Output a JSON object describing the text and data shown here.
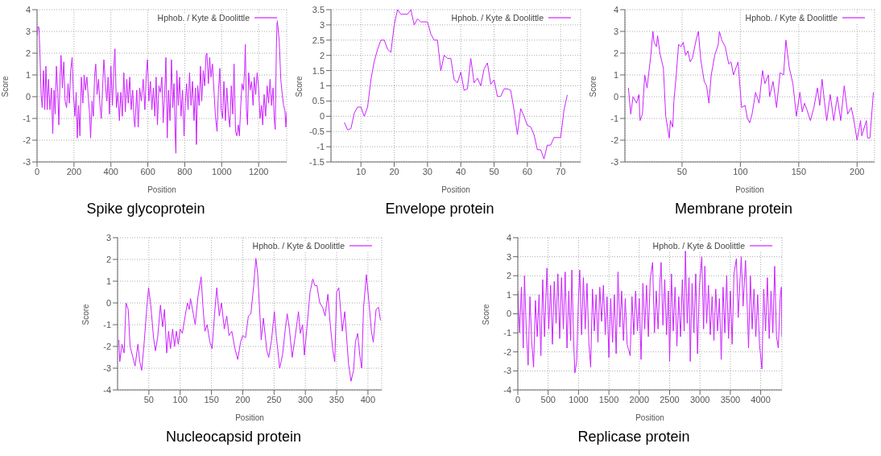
{
  "chart_data": [
    {
      "type": "line",
      "title": "Spike glycoprotein",
      "xlabel": "Position",
      "ylabel": "Score",
      "xlim": [
        0,
        1352
      ],
      "xticks": [
        0,
        200,
        400,
        600,
        800,
        1000,
        1200
      ],
      "ylim": [
        -3,
        4
      ],
      "yticks": [
        -3,
        -2,
        -1,
        0,
        1,
        2,
        3,
        4
      ],
      "grid": true,
      "legend": "top right",
      "marker": "none",
      "x": [
        0,
        5,
        10,
        15,
        22,
        28,
        35,
        42,
        48,
        55,
        62,
        70,
        78,
        85,
        92,
        98,
        105,
        112,
        118,
        125,
        130,
        137,
        145,
        152,
        160,
        168,
        175,
        182,
        190,
        197,
        205,
        212,
        218,
        225,
        232,
        240,
        248,
        255,
        262,
        270,
        278,
        285,
        290,
        298,
        305,
        312,
        318,
        325,
        333,
        340,
        348,
        355,
        362,
        370,
        378,
        385,
        392,
        400,
        408,
        418,
        422,
        430,
        438,
        446,
        454,
        462,
        470,
        478,
        486,
        494,
        502,
        510,
        518,
        525,
        530,
        540,
        548,
        556,
        565,
        575,
        584,
        592,
        598,
        606,
        614,
        622,
        630,
        638,
        645,
        652,
        660,
        668,
        676,
        683,
        692,
        698,
        705,
        712,
        720,
        728,
        735,
        742,
        748,
        752,
        757,
        765,
        772,
        780,
        788,
        796,
        803,
        810,
        818,
        826,
        834,
        842,
        850,
        858,
        863,
        870,
        878,
        885,
        892,
        900,
        908,
        915,
        920,
        928,
        935,
        942,
        950,
        958,
        966,
        975,
        982,
        990,
        997,
        1005,
        1012,
        1020,
        1028,
        1036,
        1044,
        1052,
        1060,
        1067,
        1075,
        1082,
        1090,
        1096,
        1102,
        1110,
        1118,
        1124,
        1128,
        1134,
        1140,
        1146,
        1154,
        1162,
        1170,
        1176,
        1184,
        1192,
        1200,
        1208,
        1216,
        1222,
        1230,
        1238,
        1246,
        1254,
        1262,
        1270,
        1278,
        1285,
        1290,
        1296,
        1300,
        1305,
        1312,
        1320,
        1328,
        1335,
        1342,
        1348,
        1352
      ],
      "series": [
        {
          "name": "Hphob. / Kyte & Doolittle",
          "color": "#cc22ff",
          "values": [
            2.8,
            3.2,
            3.2,
            2.2,
            0.1,
            -0.5,
            1.2,
            -0.6,
            1.4,
            -0.6,
            0.8,
            -0.6,
            0.4,
            -1.7,
            0.3,
            -0.8,
            1.4,
            0.2,
            -1.3,
            0.9,
            1.9,
            0.4,
            1.6,
            -0.2,
            -0.5,
            0.6,
            -0.3,
            1.2,
            1.8,
            0.1,
            -0.9,
            0.2,
            -1.9,
            -0.4,
            -1.8,
            0.9,
            -0.3,
            1.0,
            0.3,
            0.9,
            -0.1,
            -0.8,
            -1.9,
            -0.2,
            -0.9,
            1.0,
            1.5,
            0.1,
            0.8,
            -0.3,
            -1.0,
            0.4,
            1.7,
            0.6,
            -0.2,
            0.9,
            -0.8,
            1.4,
            -0.4,
            1.7,
            2.2,
            -0.5,
            0.2,
            -1.1,
            0.2,
            -0.9,
            1.1,
            -0.7,
            0.8,
            -0.3,
            0.9,
            -0.6,
            0.3,
            -1.0,
            -1.4,
            0.3,
            -1.4,
            0.4,
            -0.2,
            0.8,
            -0.6,
            1.1,
            1.7,
            -0.2,
            0.7,
            -0.6,
            0.4,
            -0.9,
            0.9,
            -1.3,
            0.5,
            0.2,
            0.9,
            -1.2,
            0.3,
            1.8,
            -1.9,
            0.3,
            -1.1,
            1.7,
            -0.5,
            0.6,
            -1.7,
            -2.6,
            1.2,
            -0.4,
            0.9,
            -0.9,
            0.3,
            -1.8,
            -0.3,
            0.6,
            -0.6,
            1.1,
            -0.4,
            0.7,
            -1.1,
            0.4,
            -2.2,
            0.5,
            -0.4,
            1.4,
            -0.2,
            1.2,
            0.5,
            1.9,
            2.0,
            0.6,
            1.8,
            0.9,
            1.5,
            0.3,
            -0.9,
            -1.6,
            0.2,
            1.3,
            -0.6,
            -1.0,
            0.7,
            -1.1,
            0.4,
            -0.8,
            -1.4,
            0.5,
            -0.8,
            1.5,
            -1.6,
            -1.8,
            -1.3,
            -1.8,
            -0.6,
            0.6,
            0.3,
            1.2,
            2.4,
            -0.6,
            -1.3,
            1.1,
            0.3,
            0.7,
            -0.4,
            0.9,
            0.1,
            1.1,
            0.4,
            -1.0,
            -0.4,
            -1.3,
            0.1,
            -0.9,
            0.5,
            -0.3,
            0.8,
            -0.4,
            0.4,
            -1.1,
            -1.5,
            2.2,
            3.5,
            3.2,
            2.5,
            0.8,
            0.1,
            -0.4,
            -0.6,
            -1.4,
            -0.7
          ]
        }
      ]
    },
    {
      "type": "line",
      "title": "Envelope protein",
      "xlabel": "Position",
      "ylabel": "Score",
      "xlim": [
        1,
        76
      ],
      "xticks": [
        10,
        20,
        30,
        40,
        50,
        60,
        70
      ],
      "ylim": [
        -1.5,
        3.5
      ],
      "yticks": [
        -1.5,
        -1,
        -0.5,
        0,
        0.5,
        1,
        1.5,
        2,
        2.5,
        3,
        3.5
      ],
      "grid": true,
      "legend": "top right",
      "marker": "none",
      "x": [
        5,
        6,
        7,
        8,
        9,
        10,
        11,
        12,
        13,
        14,
        15,
        16,
        17,
        18,
        19,
        20,
        21,
        22,
        23,
        24,
        25,
        26,
        27,
        28,
        29,
        30,
        31,
        32,
        33,
        34,
        35,
        36,
        37,
        38,
        39,
        40,
        41,
        42,
        43,
        44,
        45,
        46,
        47,
        48,
        49,
        50,
        51,
        52,
        53,
        54,
        55,
        56,
        57,
        58,
        59,
        60,
        61,
        62,
        63,
        64,
        65,
        66,
        67,
        68,
        69,
        70,
        71,
        72
      ],
      "series": [
        {
          "name": "Hphob. / Kyte & Doolittle",
          "color": "#cc22ff",
          "values": [
            -0.2,
            -0.45,
            -0.4,
            0.1,
            0.3,
            0.3,
            0.0,
            0.3,
            1.2,
            1.8,
            2.2,
            2.5,
            2.5,
            2.2,
            2.1,
            3.0,
            3.5,
            3.35,
            3.35,
            3.35,
            3.5,
            3.0,
            3.2,
            3.1,
            3.1,
            3.1,
            2.7,
            2.5,
            2.5,
            1.5,
            2.0,
            1.9,
            1.9,
            1.2,
            1.1,
            1.45,
            0.85,
            0.9,
            1.9,
            1.1,
            1.25,
            1.0,
            1.55,
            1.75,
            1.05,
            1.2,
            0.65,
            0.65,
            0.9,
            0.9,
            0.85,
            0.2,
            -0.6,
            0.25,
            0.0,
            -0.3,
            -0.35,
            -0.6,
            -1.1,
            -1.1,
            -1.4,
            -0.95,
            -0.95,
            -0.7,
            -0.7,
            -0.7,
            0.2,
            0.7
          ]
        }
      ]
    },
    {
      "type": "line",
      "title": "Membrane protein",
      "xlabel": "Position",
      "ylabel": "Score",
      "xlim": [
        1,
        215
      ],
      "xticks": [
        50,
        100,
        150,
        200
      ],
      "ylim": [
        -3,
        4
      ],
      "yticks": [
        -3,
        -2,
        -1,
        0,
        1,
        2,
        3,
        4
      ],
      "grid": true,
      "legend": "top right",
      "marker": "none",
      "x": [
        4,
        6,
        8,
        11,
        13,
        14,
        16,
        18,
        20,
        23,
        25,
        26,
        28,
        29,
        31,
        34,
        36,
        39,
        40,
        42,
        43,
        45,
        47,
        49,
        51,
        53,
        55,
        57,
        59,
        62,
        64,
        66,
        69,
        71,
        73,
        75,
        78,
        81,
        82,
        84,
        87,
        90,
        92,
        94,
        98,
        101,
        104,
        106,
        108,
        110,
        113,
        116,
        119,
        121,
        124,
        125,
        128,
        131,
        134,
        137,
        139,
        142,
        145,
        148,
        151,
        153,
        155,
        157,
        160,
        163,
        166,
        168,
        170,
        172,
        174,
        177,
        180,
        183,
        186,
        189,
        192,
        195,
        197,
        200,
        203,
        204,
        208,
        209,
        211,
        214
      ],
      "series": [
        {
          "name": "Hphob. / Kyte & Doolittle",
          "color": "#cc22ff",
          "values": [
            0.4,
            -0.8,
            0.0,
            -0.3,
            0.1,
            -1.1,
            -0.8,
            1.0,
            0.4,
            1.8,
            3.0,
            2.5,
            2.3,
            2.8,
            2.0,
            1.3,
            -0.9,
            -1.9,
            -1.1,
            -1.4,
            -0.2,
            1.0,
            2.4,
            2.3,
            2.5,
            1.9,
            2.1,
            1.6,
            1.8,
            2.6,
            3.0,
            1.7,
            0.7,
            0.5,
            -0.3,
            1.0,
            1.9,
            2.4,
            3.0,
            2.6,
            2.3,
            1.5,
            1.6,
            1.0,
            1.6,
            -0.5,
            -0.4,
            -1.0,
            -1.2,
            -0.8,
            0.2,
            -0.3,
            1.2,
            0.6,
            1.0,
            0.0,
            0.7,
            -0.5,
            1.1,
            1.0,
            2.6,
            1.3,
            0.6,
            -0.9,
            0.2,
            -0.7,
            -0.3,
            -0.6,
            -1.1,
            -0.5,
            0.4,
            -0.4,
            0.8,
            -0.2,
            -1.1,
            0.1,
            -1.1,
            0.0,
            -1.1,
            0.5,
            -0.8,
            -0.5,
            -1.0,
            -2.0,
            -1.1,
            -1.8,
            -1.1,
            -1.9,
            -1.9,
            0.2
          ]
        }
      ]
    },
    {
      "type": "line",
      "title": "Nucleocapsid protein",
      "xlabel": "Position",
      "ylabel": "Score",
      "xlim": [
        0,
        422
      ],
      "xticks": [
        50,
        100,
        150,
        200,
        250,
        300,
        350,
        400
      ],
      "ylim": [
        -4,
        3
      ],
      "yticks": [
        -4,
        -3,
        -2,
        -1,
        0,
        1,
        2,
        3
      ],
      "grid": true,
      "legend": "top right",
      "marker": "none",
      "x": [
        2,
        3.5,
        7,
        10.5,
        13.5,
        17,
        20,
        24.5,
        28,
        32.5,
        35.5,
        38.5,
        42,
        46.5,
        49.5,
        53,
        57.5,
        60.5,
        64,
        68.5,
        72,
        75,
        78.5,
        81.5,
        84.5,
        88,
        91,
        94,
        97,
        100,
        103.5,
        108,
        111.5,
        114.5,
        116.5,
        121,
        124,
        128.5,
        133.5,
        136.5,
        139.5,
        143,
        147.5,
        151,
        155,
        158.5,
        162.5,
        166,
        170.5,
        174.5,
        178,
        182.5,
        187.5,
        192,
        196.5,
        200,
        204.5,
        209,
        213,
        217.5,
        221,
        224,
        229.5,
        233,
        238.5,
        241.5,
        246,
        250.5,
        253.5,
        259,
        263.5,
        268,
        271,
        274.5,
        279,
        283.5,
        289,
        292,
        295.5,
        298.5,
        303,
        307.5,
        312,
        315,
        318.5,
        323,
        327.5,
        331.5,
        336,
        339.5,
        344,
        347,
        350,
        353.5,
        359,
        363,
        369,
        373,
        377,
        380,
        383.5,
        387,
        390,
        393,
        397.5,
        402,
        405.5,
        408.5,
        413,
        417,
        420
      ],
      "series": [
        {
          "name": "Hphob. / Kyte & Doolittle",
          "color": "#cc22ff",
          "values": [
            -1.7,
            -2.7,
            -1.9,
            -2.3,
            0.0,
            -0.3,
            -2.0,
            -2.5,
            -2.9,
            -1.9,
            -2.7,
            -3.1,
            -2.0,
            -0.3,
            0.7,
            -0.1,
            -1.6,
            -2.2,
            -1.6,
            -0.1,
            -1.1,
            -0.3,
            -2.3,
            -1.3,
            -2.1,
            -1.2,
            -2.0,
            -1.3,
            -1.9,
            -1.2,
            -1.4,
            -0.6,
            0.0,
            -0.3,
            0.2,
            -0.5,
            -1.0,
            0.3,
            1.2,
            -0.2,
            -1.3,
            -1.0,
            -1.8,
            -2.1,
            -0.5,
            0.7,
            -0.6,
            0.0,
            -1.2,
            -0.6,
            -1.5,
            -1.3,
            -2.1,
            -2.6,
            -1.8,
            -1.5,
            -1.6,
            -0.6,
            -0.5,
            0.8,
            2.05,
            1.3,
            -1.7,
            -0.7,
            -2.2,
            -2.5,
            -1.7,
            -0.4,
            -1.5,
            -3.0,
            -2.4,
            -1.2,
            -0.5,
            -1.2,
            -2.5,
            -1.6,
            -0.4,
            -1.4,
            -1.0,
            -2.4,
            -1.0,
            0.5,
            1.1,
            0.8,
            0.8,
            0.0,
            -0.2,
            -0.6,
            0.4,
            -0.9,
            -2.2,
            -2.7,
            0.5,
            0.7,
            -1.3,
            -0.4,
            -2.8,
            -3.6,
            -3.1,
            -1.8,
            -1.4,
            -2.4,
            -3.0,
            -0.2,
            1.3,
            -0.1,
            -1.3,
            -1.8,
            -0.3,
            -0.2,
            -0.8
          ]
        }
      ]
    },
    {
      "type": "line",
      "title": "Replicase protein",
      "xlabel": "Position",
      "ylabel": "Score",
      "xlim": [
        0,
        4350
      ],
      "xticks": [
        0,
        500,
        1000,
        1500,
        2000,
        2500,
        3000,
        3500,
        4000
      ],
      "ylim": [
        -4,
        4
      ],
      "yticks": [
        -4,
        -3,
        -2,
        -1,
        0,
        1,
        2,
        3,
        4
      ],
      "grid": true,
      "legend": "top right",
      "marker": "none",
      "x": [
        0,
        30,
        60,
        90,
        110,
        140,
        170,
        200,
        230,
        260,
        290,
        320,
        350,
        380,
        410,
        440,
        480,
        510,
        540,
        570,
        600,
        630,
        660,
        690,
        720,
        750,
        780,
        810,
        840,
        870,
        890,
        920,
        940,
        970,
        1000,
        1020,
        1050,
        1080,
        1110,
        1140,
        1170,
        1200,
        1230,
        1260,
        1290,
        1320,
        1350,
        1380,
        1410,
        1440,
        1470,
        1500,
        1530,
        1560,
        1590,
        1620,
        1650,
        1680,
        1710,
        1740,
        1770,
        1800,
        1850,
        1880,
        1910,
        1940,
        1970,
        2000,
        2030,
        2060,
        2090,
        2120,
        2150,
        2180,
        2220,
        2250,
        2280,
        2310,
        2340,
        2360,
        2390,
        2420,
        2450,
        2480,
        2500,
        2530,
        2560,
        2590,
        2620,
        2650,
        2680,
        2710,
        2740,
        2760,
        2790,
        2820,
        2840,
        2870,
        2900,
        2930,
        2960,
        2990,
        3030,
        3060,
        3080,
        3110,
        3140,
        3170,
        3200,
        3230,
        3260,
        3290,
        3320,
        3350,
        3380,
        3410,
        3440,
        3470,
        3500,
        3530,
        3560,
        3600,
        3630,
        3660,
        3680,
        3710,
        3750,
        3780,
        3800,
        3830,
        3860,
        3890,
        3920,
        3950,
        3980,
        4020,
        4050,
        4080,
        4110,
        4140,
        4170,
        4200,
        4230,
        4260,
        4290,
        4320,
        4340,
        4350
      ],
      "series": [
        {
          "name": "Hphob. / Kyte & Doolittle",
          "color": "#cc22ff",
          "values": [
            1.2,
            -1.0,
            1.4,
            -1.8,
            2.0,
            -0.9,
            -2.7,
            0.9,
            -1.5,
            -2.8,
            0.7,
            -1.2,
            1.0,
            -2.2,
            1.8,
            -1.2,
            2.4,
            -0.8,
            1.5,
            -1.6,
            1.7,
            -0.5,
            2.1,
            -1.3,
            1.9,
            -0.8,
            2.2,
            -1.8,
            1.2,
            -1.4,
            2.3,
            -1.5,
            -3.1,
            -2.5,
            0.9,
            2.3,
            -1.1,
            1.9,
            -0.8,
            1.6,
            -1.5,
            -2.8,
            1.3,
            -0.9,
            1.0,
            -1.5,
            1.4,
            -0.4,
            1.5,
            -1.1,
            0.9,
            -2.3,
            0.8,
            -1.5,
            1.0,
            -2.1,
            2.2,
            -0.7,
            1.2,
            -1.4,
            0.8,
            -1.6,
            -2.2,
            0.9,
            -1.1,
            1.2,
            -0.9,
            0.8,
            -2.4,
            1.6,
            -0.8,
            1.5,
            -1.2,
            1.8,
            2.7,
            -1.0,
            1.2,
            -0.8,
            1.6,
            2.7,
            -0.6,
            1.8,
            -1.1,
            1.2,
            -2.5,
            2.1,
            -0.9,
            1.4,
            -1.7,
            0.9,
            -1.2,
            1.8,
            -0.9,
            3.3,
            -0.5,
            1.9,
            -2.5,
            1.6,
            -1.0,
            2.1,
            -2.1,
            1.4,
            3.0,
            -0.8,
            2.5,
            -0.5,
            1.5,
            -1.1,
            0.9,
            -1.4,
            1.3,
            -0.9,
            0.8,
            -2.4,
            1.4,
            -1.0,
            2.0,
            -1.3,
            1.2,
            -1.6,
            2.1,
            2.9,
            -0.2,
            1.8,
            3.0,
            0.4,
            2.8,
            0.2,
            -1.8,
            2.0,
            -0.8,
            1.3,
            -1.2,
            1.0,
            -1.6,
            -2.9,
            1.3,
            -0.9,
            1.9,
            -1.3,
            1.2,
            -1.0,
            2.5,
            -1.2,
            -1.8,
            0.8,
            1.4,
            -1.2
          ]
        }
      ]
    }
  ]
}
